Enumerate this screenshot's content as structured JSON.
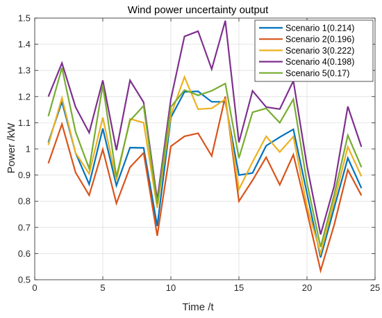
{
  "chart_data": {
    "type": "line",
    "title": "Wind power uncertainty output",
    "xlabel": "Time /t",
    "ylabel": "Power /kW",
    "xlim": [
      0,
      25
    ],
    "ylim": [
      0.5,
      1.5
    ],
    "xticks": [
      "0",
      "5",
      "10",
      "15",
      "20",
      "25"
    ],
    "yticks": [
      "0.5",
      "0.6",
      "0.7",
      "0.8",
      "0.9",
      "1",
      "1.1",
      "1.2",
      "1.3",
      "1.4",
      "1.5"
    ],
    "grid": true,
    "legend_position": "top-right",
    "x": [
      1,
      2,
      3,
      4,
      5,
      6,
      7,
      8,
      9,
      10,
      11,
      12,
      13,
      14,
      15,
      16,
      17,
      18,
      19,
      20,
      21,
      22,
      23,
      24
    ],
    "series": [
      {
        "name": "Scenario 1(0.214)",
        "color": "#0072BD",
        "values": [
          1.025,
          1.18,
          0.985,
          0.865,
          1.078,
          0.86,
          1.005,
          1.004,
          0.705,
          1.12,
          1.218,
          1.22,
          1.18,
          1.18,
          0.9,
          0.908,
          1.012,
          1.045,
          1.075,
          0.83,
          0.585,
          0.775,
          0.965,
          0.85
        ]
      },
      {
        "name": "Scenario 2(0.196)",
        "color": "#D95319",
        "values": [
          0.945,
          1.095,
          0.91,
          0.823,
          0.998,
          0.792,
          0.93,
          0.985,
          0.668,
          1.01,
          1.048,
          1.06,
          0.973,
          1.2,
          0.8,
          0.88,
          0.968,
          0.863,
          0.978,
          0.76,
          0.535,
          0.71,
          0.92,
          0.822
        ]
      },
      {
        "name": "Scenario 3(0.222)",
        "color": "#EDB120",
        "values": [
          1.015,
          1.195,
          0.985,
          0.905,
          1.12,
          0.88,
          1.115,
          1.1,
          0.775,
          1.13,
          1.275,
          1.152,
          1.155,
          1.19,
          0.845,
          0.95,
          1.048,
          0.988,
          1.047,
          0.78,
          0.6,
          0.8,
          1.008,
          0.895
        ]
      },
      {
        "name": "Scenario 4(0.198)",
        "color": "#7E2F8E",
        "values": [
          1.2,
          1.328,
          1.16,
          1.062,
          1.262,
          0.995,
          1.262,
          1.178,
          0.805,
          1.19,
          1.43,
          1.45,
          1.305,
          1.49,
          1.025,
          1.222,
          1.16,
          1.152,
          1.26,
          0.935,
          0.673,
          0.858,
          1.162,
          1.008
        ]
      },
      {
        "name": "Scenario 5(0.17)",
        "color": "#77AC30",
        "values": [
          1.125,
          1.31,
          1.065,
          0.925,
          1.245,
          0.893,
          1.108,
          1.165,
          0.79,
          1.16,
          1.225,
          1.205,
          1.222,
          1.25,
          0.965,
          1.14,
          1.155,
          1.1,
          1.19,
          0.87,
          0.625,
          0.825,
          1.052,
          0.93
        ]
      }
    ]
  }
}
